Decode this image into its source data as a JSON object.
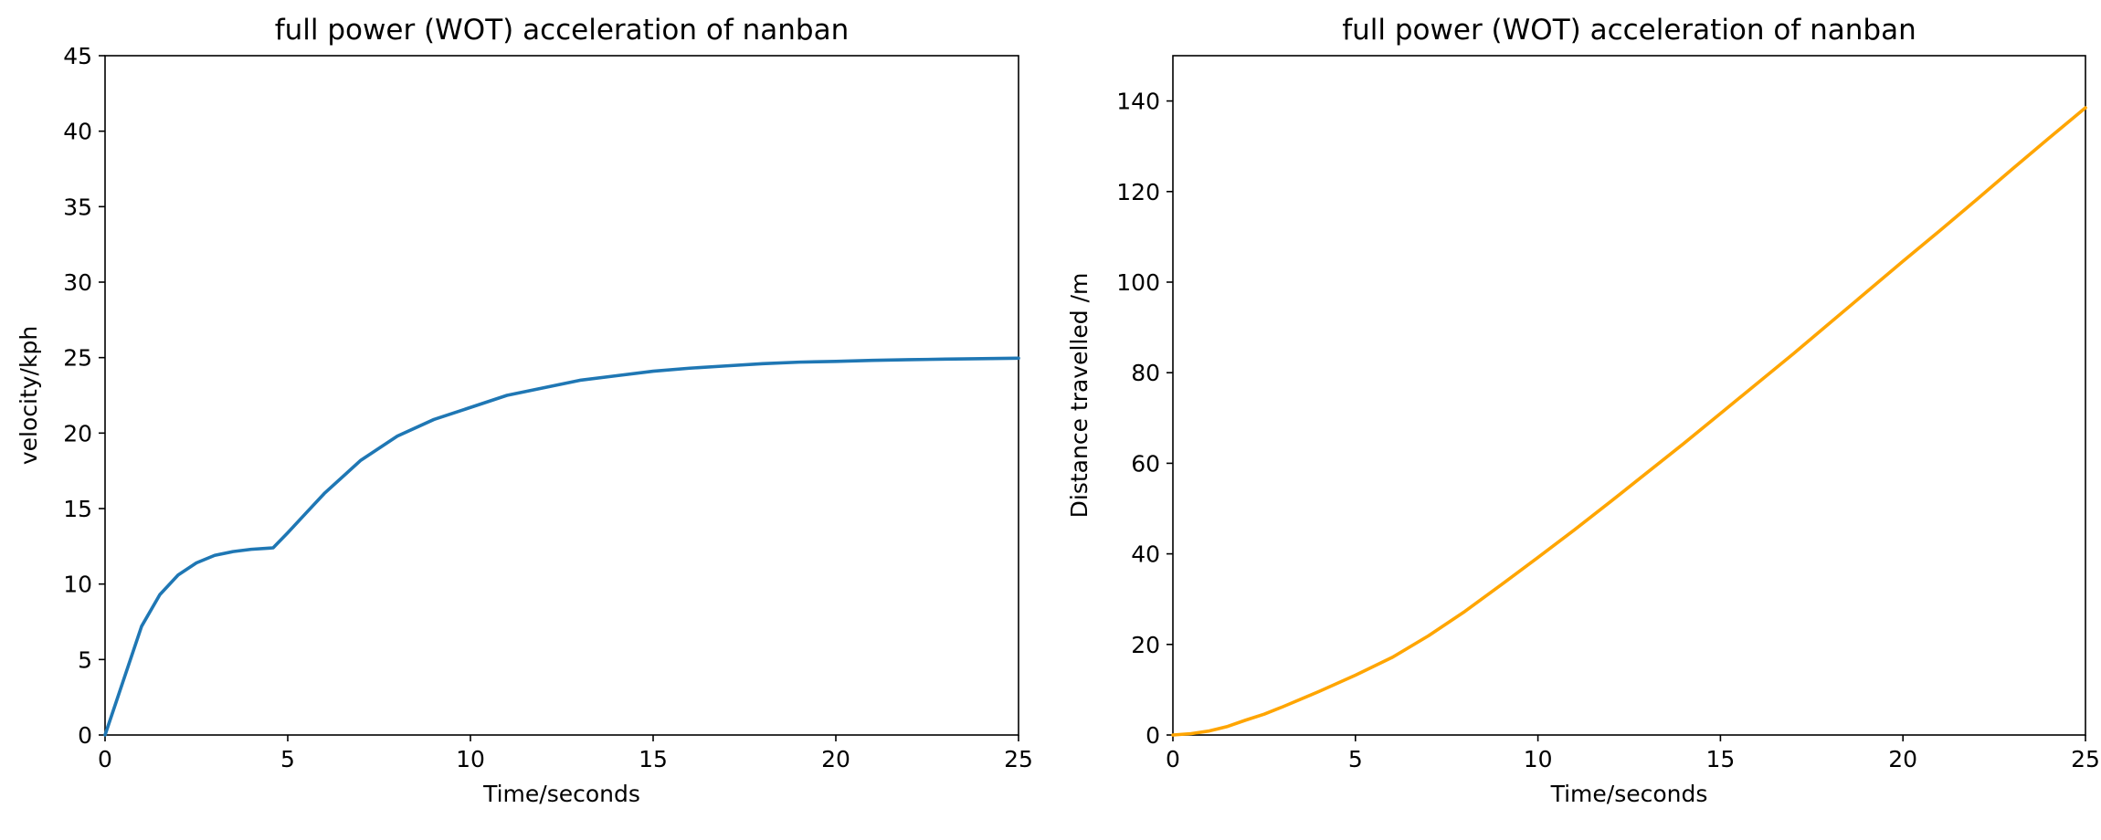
{
  "chart_data": [
    {
      "type": "line",
      "title": "full power (WOT) acceleration of nanban",
      "xlabel": "Time/seconds",
      "ylabel": "velocity/kph",
      "xlim": [
        0,
        25
      ],
      "ylim": [
        0,
        45
      ],
      "xticks": [
        0,
        5,
        10,
        15,
        20,
        25
      ],
      "yticks": [
        0,
        5,
        10,
        15,
        20,
        25,
        30,
        35,
        40,
        45
      ],
      "grid": false,
      "series": [
        {
          "color": "#1f77b4",
          "x": [
            0,
            0.5,
            1,
            1.5,
            2,
            2.5,
            3,
            3.5,
            4,
            4.5,
            4.6,
            5,
            5.5,
            6,
            7,
            8,
            9,
            10,
            11,
            12,
            13,
            14,
            15,
            16,
            17,
            18,
            19,
            20,
            21,
            22,
            23,
            24,
            25
          ],
          "y": [
            0,
            3.6,
            7.2,
            9.3,
            10.6,
            11.4,
            11.9,
            12.15,
            12.3,
            12.38,
            12.4,
            13.4,
            14.7,
            16.0,
            18.2,
            19.8,
            20.9,
            21.7,
            22.5,
            23.0,
            23.5,
            23.8,
            24.1,
            24.3,
            24.45,
            24.6,
            24.7,
            24.75,
            24.82,
            24.86,
            24.9,
            24.93,
            24.96
          ]
        }
      ]
    },
    {
      "type": "line",
      "title": "full power (WOT) acceleration of nanban",
      "xlabel": "Time/seconds",
      "ylabel": "Distance travelled /m",
      "xlim": [
        0,
        25
      ],
      "ylim": [
        0,
        150
      ],
      "xticks": [
        0,
        5,
        10,
        15,
        20,
        25
      ],
      "yticks": [
        0,
        20,
        40,
        60,
        80,
        100,
        120,
        140
      ],
      "grid": false,
      "series": [
        {
          "color": "#ffa500",
          "x": [
            0,
            0.5,
            1,
            1.5,
            2,
            2.5,
            3,
            4,
            5,
            6,
            7,
            8,
            9,
            10,
            11,
            12,
            13,
            14,
            15,
            16,
            17,
            18,
            19,
            20,
            21,
            22,
            23,
            24,
            25
          ],
          "y": [
            0,
            0.3,
            0.9,
            1.9,
            3.3,
            4.6,
            6.2,
            9.6,
            13.2,
            17.1,
            21.9,
            27.3,
            33.2,
            39.2,
            45.3,
            51.6,
            58.0,
            64.4,
            71.0,
            77.6,
            84.2,
            91.0,
            97.8,
            104.6,
            111.3,
            118.1,
            125.0,
            131.8,
            138.5
          ]
        }
      ]
    }
  ]
}
